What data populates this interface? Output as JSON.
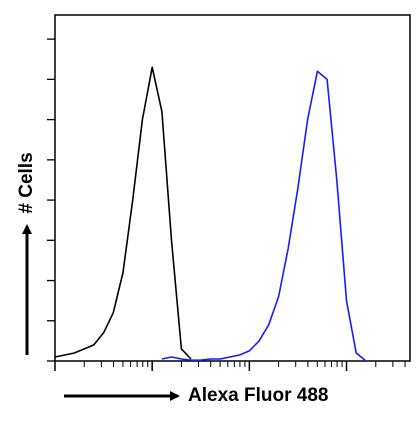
{
  "chart_data": {
    "type": "line",
    "xlabel": "Alexa Fluor 488",
    "ylabel": "# Cells",
    "xscale": "log",
    "x": [
      1,
      1.26,
      1.58,
      2,
      2.51,
      3.16,
      3.98,
      5.01,
      6.31,
      7.94,
      10,
      12.6,
      15.8,
      20,
      25.1,
      31.6,
      39.8,
      50.1,
      63.1,
      79.4,
      100,
      126,
      158,
      200,
      251,
      316,
      398,
      501,
      631,
      794,
      1000,
      1259,
      1585,
      1995
    ],
    "series": [
      {
        "color": "#000000",
        "values": [
          0.1,
          0.15,
          0.2,
          0.3,
          0.4,
          0.7,
          1.2,
          2.2,
          4.0,
          6.0,
          7.3,
          6.2,
          3.0,
          0.3,
          0.05,
          null,
          null,
          null,
          null,
          null,
          null,
          null,
          null,
          null,
          null,
          null,
          null,
          null,
          null,
          null,
          null,
          null,
          null,
          null
        ]
      },
      {
        "color": "#1a1aff",
        "values": [
          null,
          null,
          null,
          null,
          null,
          null,
          null,
          null,
          null,
          null,
          null,
          0.05,
          0.1,
          0.05,
          0.02,
          0.02,
          0.05,
          0.05,
          0.1,
          0.15,
          0.25,
          0.5,
          0.9,
          1.6,
          2.8,
          4.3,
          6.0,
          7.2,
          7.0,
          4.5,
          1.5,
          0.2,
          0.0,
          null
        ]
      }
    ],
    "xlim": [
      1,
      4500
    ],
    "xticks": [
      1,
      10,
      100,
      1000
    ],
    "xminorticks": [
      2,
      3,
      4,
      5,
      6,
      7,
      8,
      9,
      20,
      30,
      40,
      50,
      60,
      70,
      80,
      90,
      200,
      300,
      400,
      500,
      600,
      700,
      800,
      900,
      2000,
      3000,
      4000
    ],
    "ylim": [
      0,
      8.6
    ],
    "yticks": [
      0,
      1,
      2,
      3,
      4,
      5,
      6,
      7,
      8
    ]
  }
}
